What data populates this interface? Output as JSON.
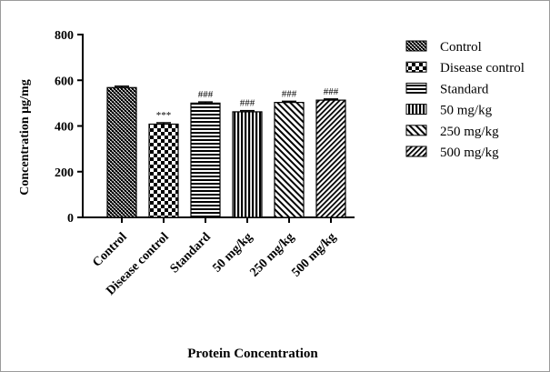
{
  "chart_data": {
    "type": "bar",
    "title": "",
    "xlabel": "Protein Concentration",
    "ylabel": "Concentration µg/mg",
    "ylim": [
      0,
      800
    ],
    "yticks": [
      0,
      200,
      400,
      600,
      800
    ],
    "categories": [
      "Control",
      "Disease control",
      "Standard",
      "50 mg/kg",
      "250 mg/kg",
      "500 mg/kg"
    ],
    "values": [
      568,
      408,
      500,
      462,
      503,
      513
    ],
    "errors": [
      6,
      6,
      5,
      5,
      5,
      5
    ],
    "annotations": [
      "",
      "***",
      "###",
      "###",
      "###",
      "###"
    ],
    "patterns": [
      "crosshatch",
      "checker",
      "hlines",
      "vlines",
      "diag",
      "diagfine"
    ],
    "legend": {
      "position": "right",
      "entries": [
        "Control",
        "Disease control",
        "Standard",
        "50 mg/kg",
        "250 mg/kg",
        "500 mg/kg"
      ]
    },
    "grid": false
  }
}
